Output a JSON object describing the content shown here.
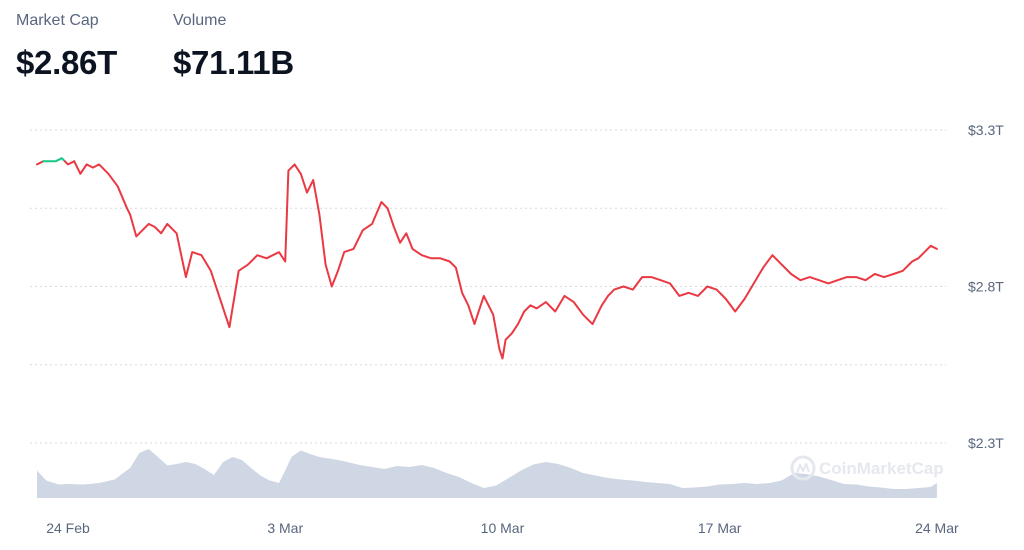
{
  "stats": {
    "market_cap": {
      "label": "Market Cap",
      "value": "$2.86T"
    },
    "volume": {
      "label": "Volume",
      "value": "$71.11B"
    }
  },
  "watermark": "CoinMarketCap",
  "colors": {
    "line_up": "#16c784",
    "line_down": "#ea3943",
    "volume_fill": "#cfd6e4",
    "grid": "#d5d9e0"
  },
  "chart_data": {
    "type": "line",
    "y_ticks": [
      {
        "label": "$3.3T",
        "value": 3.3
      },
      {
        "label": "$2.8T",
        "value": 2.8
      },
      {
        "label": "$2.3T",
        "value": 2.3
      }
    ],
    "gridlines": [
      3.3,
      3.05,
      2.8,
      2.55,
      2.3
    ],
    "ylim": [
      2.3,
      3.3
    ],
    "x_ticks": [
      {
        "label": "24 Feb",
        "day": 1
      },
      {
        "label": "3 Mar",
        "day": 8
      },
      {
        "label": "10 Mar",
        "day": 15
      },
      {
        "label": "17 Mar",
        "day": 22
      },
      {
        "label": "24 Mar",
        "day": 29
      }
    ],
    "xlim": [
      0,
      29.1
    ],
    "baseline": 3.2,
    "series": [
      {
        "values_unit": "trillion USD",
        "x": [
          0,
          0.2,
          0.4,
          0.6,
          0.8,
          1.0,
          1.2,
          1.4,
          1.6,
          1.8,
          2.0,
          2.3,
          2.6,
          2.9,
          3.0,
          3.2,
          3.4,
          3.6,
          3.8,
          4.0,
          4.2,
          4.5,
          4.8,
          5.0,
          5.3,
          5.6,
          5.9,
          6.2,
          6.5,
          6.8,
          7.1,
          7.4,
          7.6,
          7.8,
          8.0,
          8.1,
          8.3,
          8.5,
          8.7,
          8.9,
          9.1,
          9.3,
          9.5,
          9.7,
          9.9,
          10.2,
          10.5,
          10.8,
          11.1,
          11.3,
          11.5,
          11.7,
          11.9,
          12.1,
          12.4,
          12.7,
          13.0,
          13.3,
          13.5,
          13.7,
          13.9,
          14.1,
          14.4,
          14.7,
          14.9,
          15.0,
          15.1,
          15.3,
          15.5,
          15.7,
          15.9,
          16.1,
          16.4,
          16.7,
          17.0,
          17.3,
          17.6,
          17.9,
          18.2,
          18.4,
          18.6,
          18.9,
          19.2,
          19.5,
          19.8,
          20.1,
          20.4,
          20.7,
          21.0,
          21.3,
          21.6,
          21.9,
          22.2,
          22.5,
          22.8,
          23.1,
          23.4,
          23.7,
          24.0,
          24.3,
          24.6,
          24.9,
          25.2,
          25.5,
          25.8,
          26.1,
          26.4,
          26.7,
          27.0,
          27.3,
          27.6,
          27.9,
          28.2,
          28.4,
          28.6,
          28.8,
          29.0
        ],
        "values": [
          3.19,
          3.2,
          3.2,
          3.2,
          3.21,
          3.19,
          3.2,
          3.16,
          3.19,
          3.18,
          3.19,
          3.16,
          3.12,
          3.05,
          3.03,
          2.96,
          2.98,
          3.0,
          2.99,
          2.97,
          3.0,
          2.97,
          2.83,
          2.91,
          2.9,
          2.85,
          2.76,
          2.67,
          2.85,
          2.87,
          2.9,
          2.89,
          2.9,
          2.91,
          2.88,
          3.17,
          3.19,
          3.16,
          3.1,
          3.14,
          3.03,
          2.87,
          2.8,
          2.85,
          2.91,
          2.92,
          2.98,
          3.0,
          3.07,
          3.05,
          2.99,
          2.94,
          2.97,
          2.92,
          2.9,
          2.89,
          2.89,
          2.88,
          2.86,
          2.78,
          2.74,
          2.68,
          2.77,
          2.71,
          2.6,
          2.57,
          2.63,
          2.65,
          2.68,
          2.72,
          2.74,
          2.73,
          2.75,
          2.72,
          2.77,
          2.75,
          2.71,
          2.68,
          2.74,
          2.77,
          2.79,
          2.8,
          2.79,
          2.83,
          2.83,
          2.82,
          2.81,
          2.77,
          2.78,
          2.77,
          2.8,
          2.79,
          2.76,
          2.72,
          2.76,
          2.81,
          2.86,
          2.9,
          2.87,
          2.84,
          2.82,
          2.83,
          2.82,
          2.81,
          2.82,
          2.83,
          2.83,
          2.82,
          2.84,
          2.83,
          2.84,
          2.85,
          2.88,
          2.89,
          2.91,
          2.93,
          2.92
        ]
      }
    ],
    "volume_series": {
      "x": [
        0,
        0.3,
        0.7,
        1.0,
        1.5,
        2.0,
        2.5,
        3.0,
        3.3,
        3.6,
        3.9,
        4.2,
        4.5,
        4.8,
        5.1,
        5.4,
        5.7,
        6.0,
        6.3,
        6.6,
        6.9,
        7.2,
        7.5,
        7.8,
        8.0,
        8.2,
        8.5,
        8.8,
        9.1,
        9.4,
        9.7,
        10.0,
        10.4,
        10.8,
        11.2,
        11.6,
        12.0,
        12.4,
        12.8,
        13.2,
        13.6,
        14.0,
        14.4,
        14.8,
        15.2,
        15.6,
        16.0,
        16.4,
        16.8,
        17.2,
        17.6,
        18.0,
        18.4,
        18.8,
        19.2,
        19.6,
        20.0,
        20.4,
        20.8,
        21.2,
        21.6,
        22.0,
        22.4,
        22.8,
        23.2,
        23.6,
        24.0,
        24.4,
        24.8,
        25.2,
        25.6,
        26.0,
        26.4,
        26.8,
        27.2,
        27.6,
        28.0,
        28.4,
        28.8,
        29.0
      ],
      "values": [
        0.55,
        0.35,
        0.27,
        0.28,
        0.27,
        0.3,
        0.37,
        0.6,
        0.9,
        0.98,
        0.82,
        0.65,
        0.68,
        0.72,
        0.68,
        0.58,
        0.46,
        0.72,
        0.82,
        0.76,
        0.6,
        0.45,
        0.35,
        0.3,
        0.55,
        0.82,
        0.95,
        0.88,
        0.82,
        0.79,
        0.76,
        0.72,
        0.66,
        0.62,
        0.58,
        0.64,
        0.62,
        0.66,
        0.6,
        0.5,
        0.42,
        0.3,
        0.2,
        0.25,
        0.4,
        0.55,
        0.67,
        0.72,
        0.68,
        0.6,
        0.5,
        0.45,
        0.4,
        0.37,
        0.35,
        0.32,
        0.3,
        0.28,
        0.2,
        0.21,
        0.23,
        0.27,
        0.28,
        0.3,
        0.28,
        0.3,
        0.35,
        0.5,
        0.48,
        0.43,
        0.36,
        0.28,
        0.27,
        0.23,
        0.21,
        0.18,
        0.18,
        0.2,
        0.22,
        0.3
      ]
    }
  }
}
